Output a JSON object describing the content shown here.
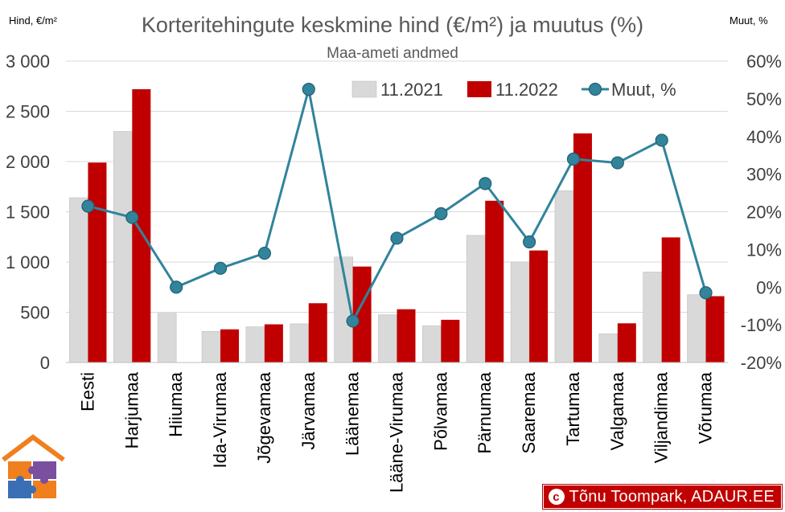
{
  "chart_data": {
    "type": "bar",
    "title": "Korteritehingute keskmine hind (€/m²) ja muutus (%)",
    "subtitle": "Maa-ameti andmed",
    "ylabel_left": "Hind, €/m²",
    "ylabel_right": "Muut, %",
    "ylim_left": [
      0,
      3000
    ],
    "yticks_left": [
      "0",
      "500",
      "1 000",
      "1 500",
      "2 000",
      "2 500",
      "3 000"
    ],
    "ylim_right": [
      -20,
      60
    ],
    "yticks_right": [
      "-20%",
      "-10%",
      "0%",
      "10%",
      "20%",
      "30%",
      "40%",
      "50%",
      "60%"
    ],
    "categories": [
      "Eesti",
      "Harjumaa",
      "Hiiumaa",
      "Ida-Virumaa",
      "Jõgevamaa",
      "Järvamaa",
      "Läänemaa",
      "Lääne-Virumaa",
      "Põlvamaa",
      "Pärnumaa",
      "Saaremaa",
      "Tartumaa",
      "Valgamaa",
      "Viljandimaa",
      "Võrumaa"
    ],
    "series": [
      {
        "name": "11.2021",
        "kind": "bar",
        "axis": "left",
        "color": "#d9d9d9",
        "values": [
          1640,
          2300,
          490,
          310,
          355,
          385,
          1050,
          475,
          365,
          1265,
          1000,
          1710,
          285,
          900,
          675
        ]
      },
      {
        "name": "11.2022",
        "kind": "bar",
        "axis": "left",
        "color": "#c00000",
        "values": [
          1990,
          2720,
          0,
          330,
          380,
          590,
          955,
          530,
          425,
          1610,
          1115,
          2280,
          390,
          1245,
          660
        ]
      },
      {
        "name": "Muut, %",
        "kind": "line",
        "axis": "right",
        "color": "#31849b",
        "values": [
          21.5,
          18.5,
          0,
          5,
          9,
          52.5,
          -9,
          13,
          19.5,
          27.5,
          12,
          34,
          33,
          39,
          -1.5
        ]
      }
    ],
    "legend": "top-right",
    "grid": true
  },
  "credit": {
    "copyright_symbol": "c",
    "text": "Tõnu Toompark, ADAUR.EE"
  },
  "logo": {
    "name": "house-puzzle-logo",
    "colors": [
      "#f07f1e",
      "#3a6eb5",
      "#7a4fa0"
    ]
  }
}
